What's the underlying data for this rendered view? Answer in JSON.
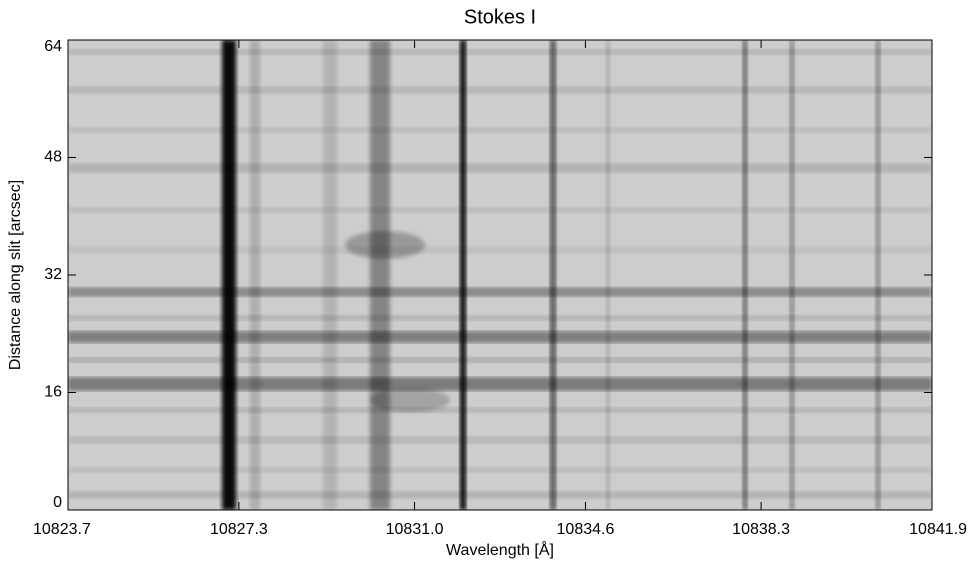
{
  "chart_data": {
    "type": "image",
    "title": "Stokes I",
    "xlabel": "Wavelength [Å]",
    "ylabel": "Distance along slit [arcsec]",
    "xlim": [
      10823.7,
      10841.9
    ],
    "ylim": [
      0,
      64
    ],
    "xticks": [
      10823.7,
      10827.3,
      {
        "value": 10831.0,
        "label": "10831.0"
      },
      10834.6,
      10838.3,
      10841.9
    ],
    "yticks": [
      0,
      16,
      32,
      48,
      64
    ]
  }
}
